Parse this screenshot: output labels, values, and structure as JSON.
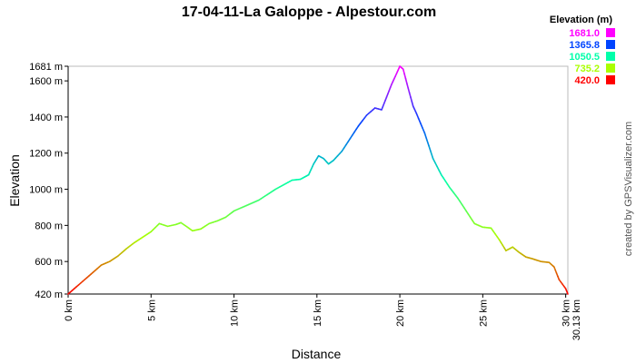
{
  "chart_data": {
    "type": "line",
    "title": "17-04-11-La Galoppe - Alpestour.com",
    "xlabel": "Distance",
    "ylabel": "Elevation",
    "x_unit": "km",
    "y_unit": "m",
    "xlim": [
      0,
      30.13
    ],
    "ylim": [
      420,
      1681
    ],
    "x_ticks": [
      0,
      5,
      10,
      15,
      20,
      25,
      30
    ],
    "x_tick_labels": [
      "0 km",
      "5 km",
      "10 km",
      "15 km",
      "20 km",
      "25 km",
      "30 km"
    ],
    "x_end_label": "30.13 km",
    "y_ticks": [
      420,
      600,
      800,
      1000,
      1200,
      1400,
      1600,
      1681
    ],
    "y_tick_labels": [
      "420 m",
      "600 m",
      "800 m",
      "1000 m",
      "1200 m",
      "1400 m",
      "1600 m",
      "1681 m"
    ],
    "grid": false,
    "legend_position": "top-right",
    "legend": {
      "title": "Elevation (m)",
      "entries": [
        {
          "label": "1681.0",
          "color": "#ff00ff"
        },
        {
          "label": "1365.8",
          "color": "#0044ff"
        },
        {
          "label": "1050.5",
          "color": "#00ffaa"
        },
        {
          "label": "735.2",
          "color": "#aaff00"
        },
        {
          "label": "420.0",
          "color": "#ff0000"
        }
      ]
    },
    "series": [
      {
        "x": [
          0,
          0.5,
          1,
          1.5,
          2,
          2.5,
          3,
          3.5,
          4,
          4.5,
          5,
          5.5,
          6,
          6.5,
          6.8,
          7.2,
          7.5,
          8,
          8.5,
          9,
          9.5,
          10,
          10.5,
          11,
          11.5,
          12,
          12.5,
          13,
          13.5,
          14,
          14.5,
          14.8,
          15.1,
          15.4,
          15.7,
          16,
          16.5,
          17,
          17.5,
          18,
          18.5,
          18.9,
          19.2,
          19.5,
          19.8,
          20,
          20.2,
          20.5,
          20.8,
          21,
          21.5,
          22,
          22.5,
          23,
          23.5,
          24,
          24.5,
          25,
          25.5,
          26,
          26.4,
          26.8,
          27.2,
          27.6,
          28,
          28.5,
          29,
          29.3,
          29.6,
          30,
          30.13
        ],
        "y": [
          420,
          460,
          500,
          540,
          580,
          600,
          630,
          670,
          705,
          735,
          765,
          810,
          795,
          805,
          815,
          790,
          770,
          780,
          810,
          825,
          845,
          880,
          900,
          920,
          940,
          970,
          1000,
          1025,
          1050,
          1055,
          1080,
          1140,
          1185,
          1170,
          1140,
          1160,
          1210,
          1280,
          1350,
          1410,
          1450,
          1440,
          1510,
          1580,
          1640,
          1681,
          1665,
          1560,
          1460,
          1420,
          1310,
          1170,
          1080,
          1010,
          950,
          880,
          810,
          790,
          785,
          720,
          660,
          680,
          650,
          625,
          615,
          600,
          595,
          570,
          500,
          450,
          420
        ]
      }
    ]
  },
  "credit": "created by GPSVisualizer.com"
}
